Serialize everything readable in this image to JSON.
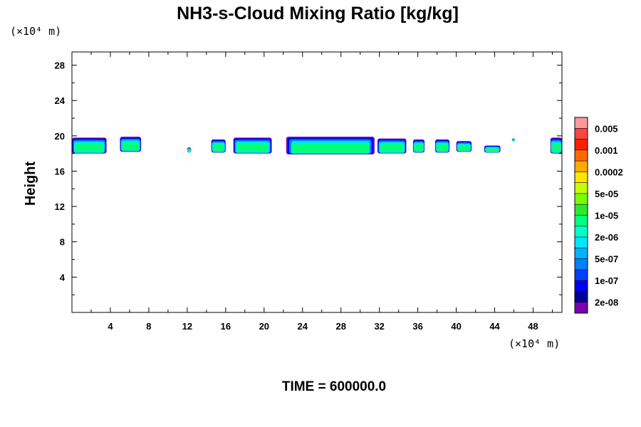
{
  "chart_data": {
    "type": "heatmap",
    "title": "NH3-s-Cloud Mixing Ratio [kg/kg]",
    "ylabel": "Height",
    "xlabel": "",
    "x_unit": "(×10⁴ m)",
    "y_unit": "(×10⁴ m)",
    "xlim": [
      0,
      51
    ],
    "ylim": [
      0,
      29.5
    ],
    "x_ticks": [
      4,
      8,
      12,
      16,
      20,
      24,
      28,
      32,
      36,
      40,
      44,
      48
    ],
    "y_ticks": [
      4,
      8,
      12,
      16,
      20,
      24,
      28
    ],
    "colorbar": {
      "labels": [
        "0.005",
        "0.001",
        "0.0002",
        "5e-05",
        "1e-05",
        "2e-06",
        "5e-07",
        "1e-07",
        "2e-08"
      ],
      "colors": [
        "#ff9a9a",
        "#ff4444",
        "#ff2000",
        "#ff6a00",
        "#ffaa00",
        "#ffe600",
        "#c8ff00",
        "#7cfc00",
        "#2ee82e",
        "#00ff7f",
        "#00ffcc",
        "#00e5ff",
        "#00b4ff",
        "#0080ff",
        "#0040ff",
        "#0000ee",
        "#000099",
        "#7a00b0"
      ]
    },
    "cloud_patches": [
      {
        "x": [
          0,
          3.6
        ],
        "y": [
          18.0,
          19.8
        ]
      },
      {
        "x": [
          5.0,
          7.2
        ],
        "y": [
          18.2,
          19.9
        ]
      },
      {
        "x": [
          12.0,
          12.4
        ],
        "y": [
          18.1,
          18.7
        ]
      },
      {
        "x": [
          14.5,
          16.0
        ],
        "y": [
          18.1,
          19.6
        ]
      },
      {
        "x": [
          16.8,
          20.8
        ],
        "y": [
          18.0,
          19.8
        ]
      },
      {
        "x": [
          22.3,
          31.5
        ],
        "y": [
          17.9,
          19.9
        ]
      },
      {
        "x": [
          31.8,
          34.8
        ],
        "y": [
          18.0,
          19.7
        ]
      },
      {
        "x": [
          35.5,
          36.7
        ],
        "y": [
          18.1,
          19.6
        ]
      },
      {
        "x": [
          37.8,
          39.3
        ],
        "y": [
          18.1,
          19.6
        ]
      },
      {
        "x": [
          40.0,
          41.6
        ],
        "y": [
          18.2,
          19.4
        ]
      },
      {
        "x": [
          42.9,
          44.6
        ],
        "y": [
          18.1,
          18.9
        ]
      },
      {
        "x": [
          45.8,
          46.1
        ],
        "y": [
          19.4,
          19.7
        ]
      },
      {
        "x": [
          49.8,
          51.0
        ],
        "y": [
          18.0,
          19.8
        ]
      }
    ]
  },
  "footer": {
    "time_label": "TIME = 600000.0"
  }
}
